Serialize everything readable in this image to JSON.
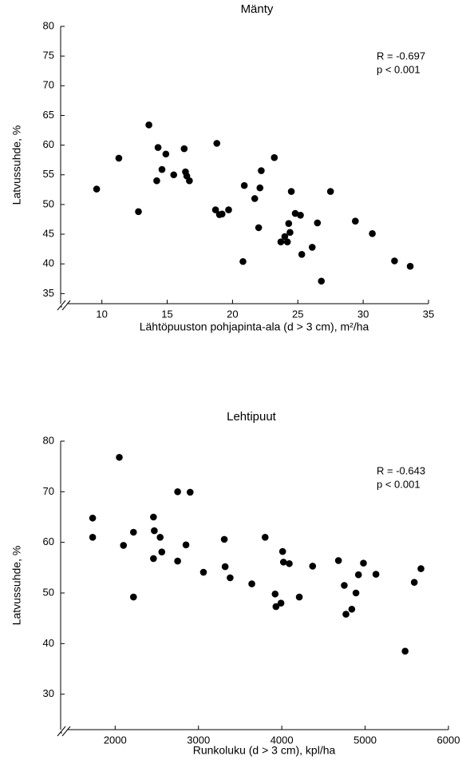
{
  "chart_data": [
    {
      "type": "scatter",
      "title": "Mänty",
      "x_label": "Lähtöpuuston pohjapinta-ala (d > 3 cm), m²/ha",
      "y_label": "Latvussuhde, %",
      "annotations": [
        "R = -0.697",
        "p <  0.001"
      ],
      "color": "#000000",
      "xlim": [
        7.7,
        35
      ],
      "ylim": [
        33.3,
        80
      ],
      "xticks": [
        10,
        15,
        20,
        25,
        30,
        35
      ],
      "yticks": [
        35,
        40,
        45,
        50,
        55,
        60,
        65,
        70,
        75,
        80
      ],
      "x": [
        9.6,
        11.3,
        12.8,
        13.6,
        14.2,
        14.3,
        14.6,
        14.9,
        15.5,
        16.3,
        16.4,
        16.5,
        16.7,
        18.7,
        18.8,
        19.0,
        19.2,
        19.7,
        20.8,
        20.9,
        21.7,
        22.0,
        22.1,
        22.2,
        23.2,
        23.7,
        24.0,
        24.2,
        24.3,
        24.4,
        24.5,
        24.8,
        25.2,
        25.3,
        26.1,
        26.5,
        26.8,
        27.5,
        29.4,
        30.7,
        32.4,
        33.6
      ],
      "values": [
        52.6,
        57.8,
        48.8,
        63.4,
        54.0,
        59.6,
        55.9,
        58.5,
        55.0,
        59.4,
        55.5,
        54.8,
        54.0,
        49.1,
        60.3,
        48.3,
        48.4,
        49.1,
        40.4,
        53.2,
        51.0,
        46.1,
        52.8,
        55.7,
        57.9,
        43.7,
        44.6,
        43.7,
        46.8,
        45.3,
        52.2,
        48.5,
        48.2,
        41.6,
        42.8,
        46.9,
        37.1,
        52.2,
        47.2,
        45.1,
        40.5,
        39.6
      ]
    },
    {
      "type": "scatter",
      "title": "Lehtipuut",
      "x_label": "Runkoluku (d > 3 cm), kpl/ha",
      "y_label": "Latvussuhde, %",
      "annotations": [
        "R = -0.643",
        "p <  0.001"
      ],
      "color": "#000000",
      "xlim": [
        1480,
        6000
      ],
      "ylim": [
        23,
        80
      ],
      "xticks": [
        2000,
        3000,
        4000,
        5000,
        6000
      ],
      "yticks": [
        30,
        40,
        50,
        60,
        70,
        80
      ],
      "x": [
        1730,
        1730,
        2050,
        2100,
        2220,
        2220,
        2460,
        2470,
        2460,
        2540,
        2560,
        2750,
        2750,
        2850,
        2900,
        3060,
        3310,
        3320,
        3380,
        3640,
        3800,
        3920,
        3930,
        3990,
        4010,
        4020,
        4090,
        4210,
        4370,
        4680,
        4750,
        4770,
        4840,
        4890,
        4920,
        4980,
        5130,
        5480,
        5590,
        5670
      ],
      "values": [
        64.8,
        61,
        76.8,
        59.4,
        62,
        49.2,
        65,
        62.3,
        56.8,
        61,
        58.1,
        70,
        56.3,
        59.5,
        69.9,
        54.1,
        60.6,
        55.2,
        53,
        51.8,
        61,
        49.8,
        47.3,
        48,
        58.2,
        56.1,
        55.8,
        49.2,
        55.3,
        56.4,
        51.5,
        45.8,
        46.8,
        50,
        53.6,
        55.9,
        53.7,
        38.5,
        52.1,
        54.8
      ]
    }
  ]
}
